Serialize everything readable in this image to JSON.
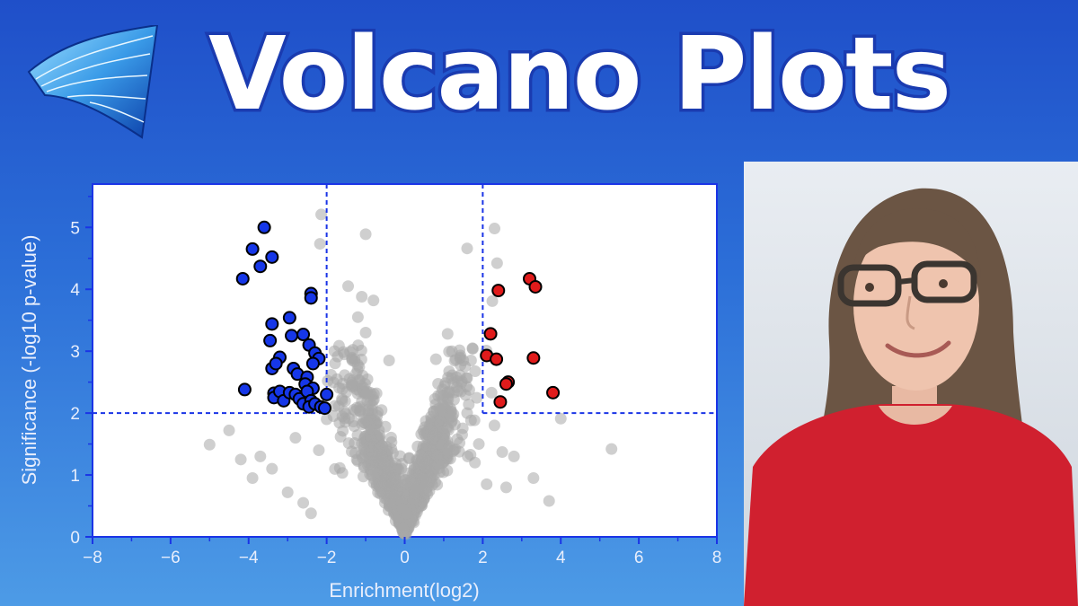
{
  "header": {
    "title": "Volcano Plots"
  },
  "logo": {
    "icon": "wave-ribbon-logo-icon"
  },
  "photo": {
    "icon": "presenter-portrait-icon"
  },
  "colors": {
    "accent": "#1a34e6",
    "up": "#e01b1b",
    "down": "#1637e8",
    "neutral": "#a8a8a8"
  },
  "chart_data": {
    "type": "scatter",
    "xlabel": "Enrichment(log2)",
    "ylabel": "Significance (-log10 p-value)",
    "xlim": [
      -8,
      8
    ],
    "ylim": [
      0,
      5.7
    ],
    "xticks": [
      -8,
      -6,
      -4,
      -2,
      0,
      2,
      4,
      6,
      8
    ],
    "yticks": [
      0,
      1,
      2,
      3,
      4,
      5
    ],
    "xtick_labels": [
      "−8",
      "−6",
      "−4",
      "−2",
      "0",
      "2",
      "4",
      "6",
      "8"
    ],
    "ytick_labels": [
      "0",
      "1",
      "2",
      "3",
      "4",
      "5"
    ],
    "thresholds": {
      "x": [
        -2,
        2
      ],
      "y": 2
    },
    "grid": false,
    "legend": "none",
    "series": [
      {
        "group": "down",
        "points": [
          [
            -3.6,
            5.0
          ],
          [
            -3.9,
            4.65
          ],
          [
            -3.7,
            4.37
          ],
          [
            -3.4,
            4.52
          ],
          [
            -4.15,
            4.17
          ],
          [
            -2.4,
            3.93
          ],
          [
            -2.4,
            3.86
          ],
          [
            -2.95,
            3.54
          ],
          [
            -3.4,
            3.44
          ],
          [
            -3.45,
            3.17
          ],
          [
            -2.9,
            3.25
          ],
          [
            -2.6,
            3.27
          ],
          [
            -2.45,
            3.1
          ],
          [
            -2.3,
            2.97
          ],
          [
            -2.2,
            2.88
          ],
          [
            -2.35,
            2.8
          ],
          [
            -3.2,
            2.9
          ],
          [
            -3.4,
            2.72
          ],
          [
            -3.3,
            2.8
          ],
          [
            -2.85,
            2.72
          ],
          [
            -2.75,
            2.63
          ],
          [
            -2.5,
            2.58
          ],
          [
            -2.55,
            2.47
          ],
          [
            -2.35,
            2.4
          ],
          [
            -4.1,
            2.38
          ],
          [
            -3.35,
            2.32
          ],
          [
            -3.35,
            2.25
          ],
          [
            -3.2,
            2.35
          ],
          [
            -3.1,
            2.2
          ],
          [
            -2.95,
            2.33
          ],
          [
            -2.8,
            2.3
          ],
          [
            -2.7,
            2.23
          ],
          [
            -2.6,
            2.15
          ],
          [
            -2.5,
            2.35
          ],
          [
            -2.4,
            2.2
          ],
          [
            -2.45,
            2.1
          ],
          [
            -2.3,
            2.15
          ],
          [
            -2.15,
            2.1
          ],
          [
            -2.05,
            2.08
          ],
          [
            -2.0,
            2.3
          ]
        ]
      },
      {
        "group": "up",
        "points": [
          [
            2.4,
            3.98
          ],
          [
            3.2,
            4.17
          ],
          [
            3.35,
            4.04
          ],
          [
            2.2,
            3.28
          ],
          [
            2.1,
            2.93
          ],
          [
            2.35,
            2.87
          ],
          [
            3.3,
            2.89
          ],
          [
            2.65,
            2.5
          ],
          [
            2.6,
            2.47
          ],
          [
            2.45,
            2.18
          ],
          [
            3.8,
            2.33
          ]
        ]
      },
      {
        "group": "neutral",
        "points": []
      }
    ]
  }
}
